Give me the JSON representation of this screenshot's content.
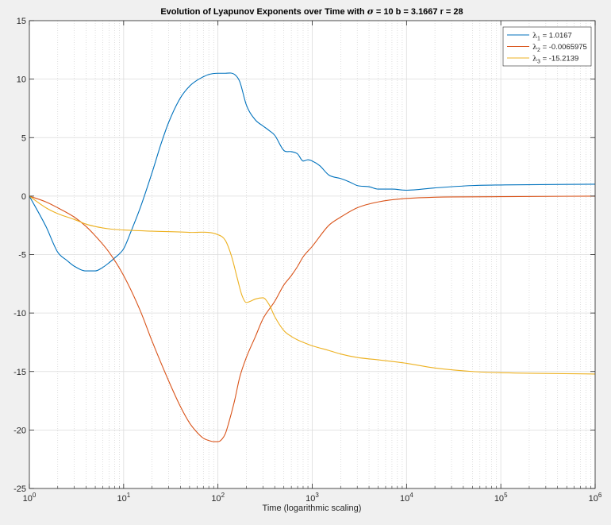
{
  "chart_data": {
    "type": "line",
    "title_parts": {
      "pre": "Evolution of Lyapunov Exponents over Time with ",
      "sigma": "σ",
      "post": " = 10 b = 3.1667 r = 28"
    },
    "xlabel": "Time (logarithmic scaling)",
    "ylabel": "",
    "x_scale": "log",
    "xlim": [
      1,
      1000000
    ],
    "ylim": [
      -25,
      15
    ],
    "x_ticks": [
      1,
      10,
      100,
      1000,
      10000,
      100000,
      1000000
    ],
    "x_tick_labels": [
      {
        "base": "10",
        "exp": "0"
      },
      {
        "base": "10",
        "exp": "1"
      },
      {
        "base": "10",
        "exp": "2"
      },
      {
        "base": "10",
        "exp": "3"
      },
      {
        "base": "10",
        "exp": "4"
      },
      {
        "base": "10",
        "exp": "5"
      },
      {
        "base": "10",
        "exp": "6"
      }
    ],
    "y_ticks": [
      -25,
      -20,
      -15,
      -10,
      -5,
      0,
      5,
      10,
      15
    ],
    "y_tick_labels": [
      "-25",
      "-20",
      "-15",
      "-10",
      "-5",
      "0",
      "5",
      "10",
      "15"
    ],
    "grid": true,
    "minor_grid_x": true,
    "legend_position": "top-right",
    "series": [
      {
        "name_symbol": "λ",
        "name_sub": "1",
        "name_value": " = 1.0167",
        "color": "#0072bd",
        "x": [
          1,
          1.5,
          2,
          2.5,
          3,
          4,
          5,
          6,
          7,
          8,
          10,
          12,
          15,
          20,
          25,
          30,
          40,
          50,
          60,
          70,
          80,
          100,
          120,
          150,
          170,
          200,
          250,
          300,
          350,
          400,
          500,
          600,
          700,
          800,
          900,
          1000,
          1200,
          1500,
          2000,
          2500,
          3000,
          4000,
          5000,
          7000,
          10000,
          20000,
          50000,
          100000,
          1000000
        ],
        "y": [
          0,
          -2.6,
          -4.8,
          -5.5,
          -6.0,
          -6.4,
          -6.4,
          -6.1,
          -5.7,
          -5.3,
          -4.5,
          -3.0,
          -1.0,
          2.0,
          4.5,
          6.3,
          8.4,
          9.4,
          9.9,
          10.2,
          10.4,
          10.5,
          10.5,
          10.4,
          9.8,
          7.8,
          6.5,
          6.0,
          5.6,
          5.2,
          3.9,
          3.8,
          3.6,
          3.0,
          3.1,
          3.0,
          2.6,
          1.8,
          1.5,
          1.2,
          0.9,
          0.8,
          0.6,
          0.6,
          0.5,
          0.7,
          0.9,
          0.95,
          1.0167
        ]
      },
      {
        "name_symbol": "λ",
        "name_sub": "2",
        "name_value": " = -0.0065975",
        "color": "#d95319",
        "x": [
          1,
          1.5,
          2,
          3,
          4,
          5,
          7,
          10,
          15,
          20,
          30,
          40,
          50,
          60,
          70,
          80,
          90,
          100,
          110,
          120,
          130,
          150,
          170,
          200,
          250,
          300,
          400,
          500,
          600,
          700,
          800,
          1000,
          1500,
          2000,
          3000,
          5000,
          10000,
          100000,
          1000000
        ],
        "y": [
          0,
          -0.5,
          -1.0,
          -1.8,
          -2.6,
          -3.4,
          -4.8,
          -6.8,
          -9.8,
          -12.4,
          -15.8,
          -18.0,
          -19.4,
          -20.2,
          -20.7,
          -20.9,
          -21.0,
          -21.0,
          -20.8,
          -20.3,
          -19.4,
          -17.5,
          -15.5,
          -13.8,
          -12.0,
          -10.5,
          -9.0,
          -7.6,
          -6.8,
          -6.0,
          -5.2,
          -4.3,
          -2.5,
          -1.8,
          -1.0,
          -0.5,
          -0.2,
          -0.05,
          -0.0066
        ]
      },
      {
        "name_symbol": "λ",
        "name_sub": "3",
        "name_value": " = -15.2139",
        "color": "#edb120",
        "x": [
          1,
          1.5,
          2,
          3,
          4,
          5,
          7,
          10,
          20,
          50,
          100,
          120,
          140,
          160,
          180,
          200,
          220,
          250,
          300,
          350,
          400,
          500,
          600,
          700,
          800,
          1000,
          1500,
          2000,
          3000,
          5000,
          10000,
          20000,
          50000,
          100000,
          1000000
        ],
        "y": [
          0,
          -1.0,
          -1.5,
          -2.0,
          -2.4,
          -2.6,
          -2.8,
          -2.9,
          -3.0,
          -3.1,
          -3.3,
          -3.8,
          -5.2,
          -7.0,
          -8.5,
          -9.1,
          -9.0,
          -8.8,
          -8.7,
          -9.3,
          -10.3,
          -11.5,
          -12.0,
          -12.3,
          -12.5,
          -12.8,
          -13.2,
          -13.5,
          -13.8,
          -14.0,
          -14.3,
          -14.7,
          -15.0,
          -15.1,
          -15.2139
        ]
      }
    ]
  }
}
